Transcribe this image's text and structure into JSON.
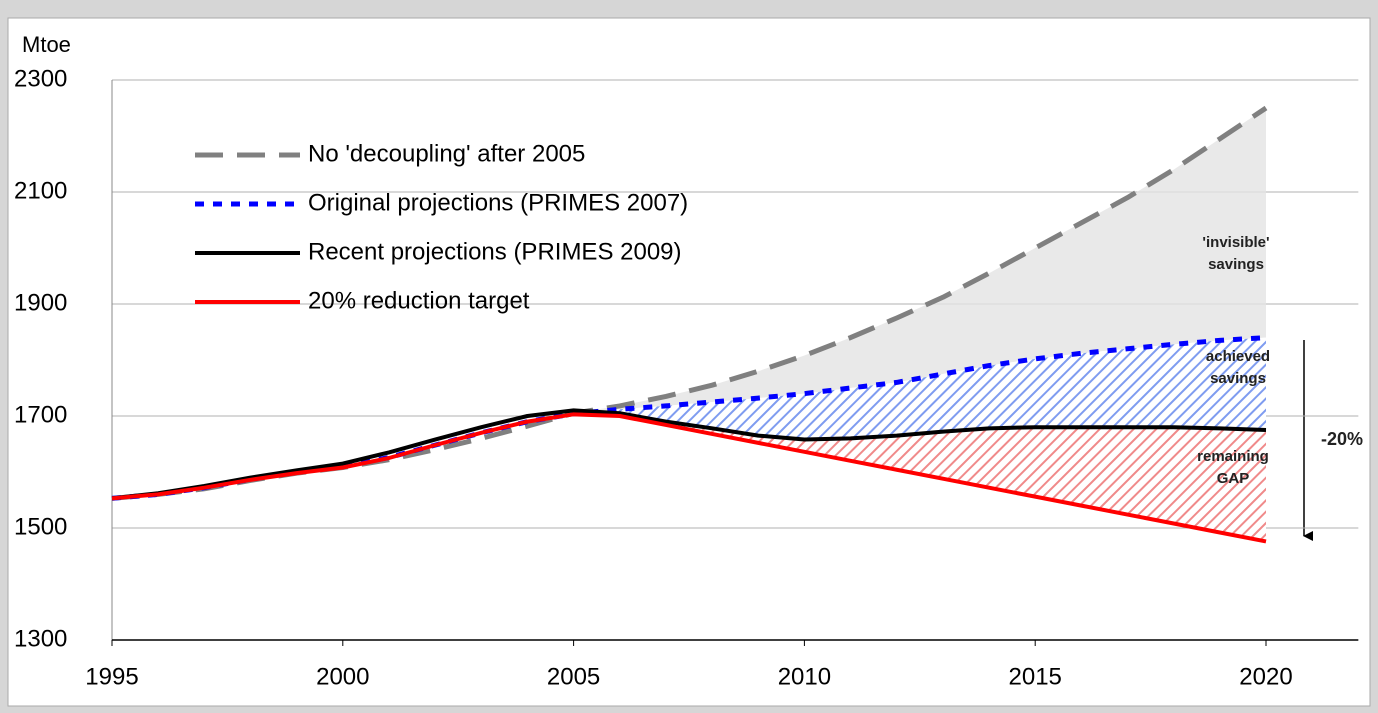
{
  "chart_data": {
    "type": "line",
    "y_label": "Mtoe",
    "x": [
      1995,
      1996,
      1997,
      1998,
      1999,
      2000,
      2001,
      2002,
      2003,
      2004,
      2005,
      2006,
      2007,
      2008,
      2009,
      2010,
      2011,
      2012,
      2013,
      2014,
      2015,
      2016,
      2017,
      2018,
      2019,
      2020
    ],
    "xlim": [
      1995,
      2022
    ],
    "xticks": [
      1995,
      2000,
      2005,
      2010,
      2015,
      2020
    ],
    "ylim": [
      1300,
      2300
    ],
    "yticks": [
      1300,
      1500,
      1700,
      1900,
      2100,
      2300
    ],
    "grid": true,
    "legend": "upper left",
    "series": [
      {
        "name": "No 'decoupling' after 2005",
        "color": "#808080",
        "style": "dashed",
        "values": [
          1553,
          1560,
          1570,
          1585,
          1598,
          1608,
          1622,
          1640,
          1660,
          1682,
          1705,
          1718,
          1735,
          1755,
          1780,
          1808,
          1840,
          1875,
          1912,
          1955,
          2000,
          2045,
          2090,
          2140,
          2195,
          2250
        ]
      },
      {
        "name": "Original projections (PRIMES 2007)",
        "color": "#0000ff",
        "style": "dotted",
        "values": [
          1553,
          1560,
          1572,
          1587,
          1600,
          1610,
          1626,
          1648,
          1670,
          1690,
          1704,
          1712,
          1718,
          1725,
          1732,
          1740,
          1750,
          1760,
          1775,
          1790,
          1802,
          1812,
          1820,
          1828,
          1835,
          1840
        ]
      },
      {
        "name": "Recent projections (PRIMES 2009)",
        "color": "#000000",
        "style": "solid",
        "values": [
          1553,
          1562,
          1575,
          1590,
          1603,
          1615,
          1635,
          1658,
          1680,
          1700,
          1710,
          1705,
          1690,
          1678,
          1665,
          1658,
          1660,
          1665,
          1672,
          1678,
          1680,
          1680,
          1680,
          1680,
          1678,
          1675
        ]
      },
      {
        "name": "20% reduction target",
        "color": "#ff0000",
        "style": "solid",
        "values": [
          1553,
          1560,
          1572,
          1586,
          1598,
          1608,
          1625,
          1648,
          1670,
          1690,
          1703,
          1700,
          1684,
          1668,
          1652,
          1636,
          1620,
          1604,
          1588,
          1572,
          1556,
          1540,
          1524,
          1508,
          1492,
          1476
        ]
      }
    ],
    "annotations": [
      {
        "lines": [
          "'invisible'",
          "savings"
        ]
      },
      {
        "lines": [
          "achieved",
          "savings"
        ]
      },
      {
        "lines": [
          "remaining",
          "GAP"
        ]
      },
      {
        "lines": [
          "-20%"
        ]
      }
    ]
  }
}
